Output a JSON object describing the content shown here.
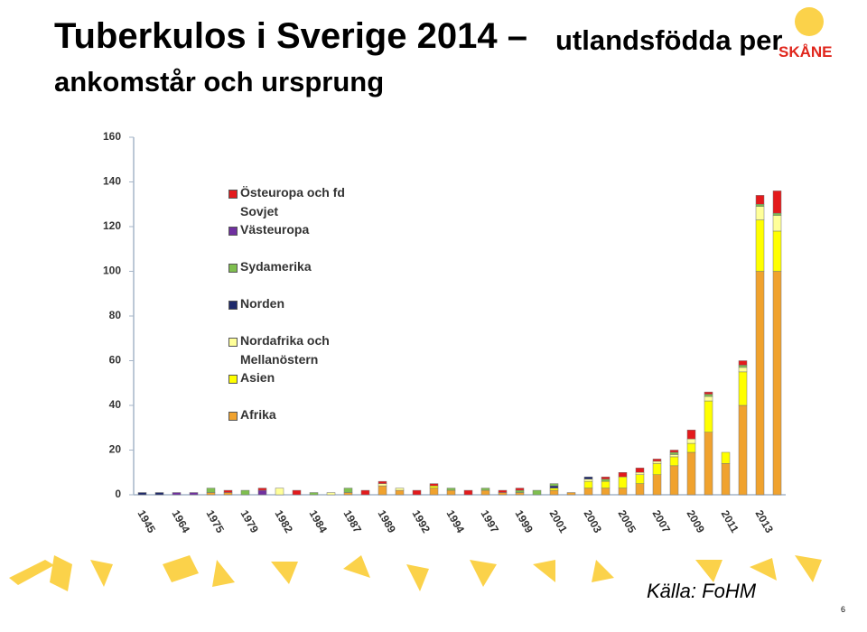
{
  "slide": {
    "title_main": "Tuberkulos i Sverige 2014 –",
    "title_sub": "utlandsfödda per ankomstår och ursprung",
    "logo": "SKÅNE",
    "source": "Källa: FoHM",
    "page_number": "6"
  },
  "chart_data": {
    "type": "stacked_bar",
    "categories": [
      "1945",
      null,
      "1964",
      null,
      "1975",
      null,
      "1979",
      null,
      "1982",
      null,
      "1984",
      null,
      "1987",
      null,
      "1989",
      null,
      "1992",
      null,
      "1994",
      null,
      "1997",
      null,
      "1999",
      null,
      "2001",
      null,
      "2003",
      null,
      "2005",
      null,
      "2007",
      null,
      "2009",
      null,
      "2011",
      null,
      "2013",
      null
    ],
    "ylim": [
      0,
      160
    ],
    "yticks": [
      0,
      20,
      40,
      60,
      80,
      100,
      120,
      140,
      160
    ],
    "grid": false,
    "series": [
      {
        "name": "Afrika",
        "color": "#f0a22e",
        "values": [
          0,
          0,
          0,
          0,
          1,
          1,
          0,
          0,
          0,
          0,
          0,
          0,
          1,
          0,
          4,
          2,
          0,
          3,
          2,
          0,
          2,
          1,
          1,
          0,
          2,
          1,
          3,
          3,
          3,
          5,
          9,
          13,
          19,
          28,
          14,
          40,
          100,
          100
        ]
      },
      {
        "name": "Asien",
        "color": "#ffff00",
        "values": [
          0,
          0,
          0,
          0,
          0,
          0,
          0,
          0,
          0,
          0,
          0,
          0,
          0,
          0,
          0,
          0,
          0,
          1,
          0,
          0,
          0,
          0,
          0,
          0,
          1,
          0,
          3,
          3,
          5,
          4,
          5,
          4,
          4,
          14,
          5,
          15,
          23,
          18
        ]
      },
      {
        "name": "Nordafrika och Mellanöstern",
        "color": "#ffff99",
        "values": [
          0,
          0,
          0,
          0,
          0,
          0,
          0,
          0,
          3,
          0,
          0,
          1,
          0,
          0,
          1,
          1,
          0,
          0,
          0,
          0,
          0,
          0,
          0,
          0,
          0,
          0,
          1,
          0,
          0,
          1,
          1,
          1,
          2,
          2,
          0,
          2,
          6,
          7
        ]
      },
      {
        "name": "Norden",
        "color": "#1f2a6b",
        "values": [
          1,
          1,
          0,
          0,
          0,
          0,
          0,
          0,
          0,
          0,
          0,
          0,
          0,
          0,
          0,
          0,
          0,
          0,
          0,
          0,
          0,
          0,
          0,
          0,
          1,
          0,
          1,
          0,
          0,
          0,
          0,
          0,
          0,
          0,
          0,
          0,
          0,
          0
        ]
      },
      {
        "name": "Sydamerika",
        "color": "#7fbf4f",
        "values": [
          0,
          0,
          0,
          0,
          2,
          0,
          2,
          0,
          0,
          0,
          1,
          0,
          2,
          0,
          0,
          0,
          0,
          0,
          1,
          0,
          1,
          0,
          1,
          2,
          1,
          0,
          0,
          1,
          0,
          0,
          0,
          1,
          0,
          1,
          0,
          1,
          1,
          1
        ]
      },
      {
        "name": "Västeuropa",
        "color": "#7030a0",
        "values": [
          0,
          0,
          1,
          1,
          0,
          0,
          0,
          2,
          0,
          0,
          0,
          0,
          0,
          0,
          0,
          0,
          0,
          0,
          0,
          0,
          0,
          0,
          0,
          0,
          0,
          0,
          0,
          0,
          0,
          0,
          0,
          0,
          0,
          0,
          0,
          0,
          0,
          0
        ]
      },
      {
        "name": "Östeuropa och fd Sovjet",
        "color": "#e31a1c",
        "values": [
          0,
          0,
          0,
          0,
          0,
          1,
          0,
          1,
          0,
          2,
          0,
          0,
          0,
          2,
          1,
          0,
          2,
          1,
          0,
          2,
          0,
          1,
          1,
          0,
          0,
          0,
          0,
          1,
          2,
          2,
          1,
          1,
          4,
          1,
          0,
          2,
          4,
          10
        ]
      }
    ]
  }
}
